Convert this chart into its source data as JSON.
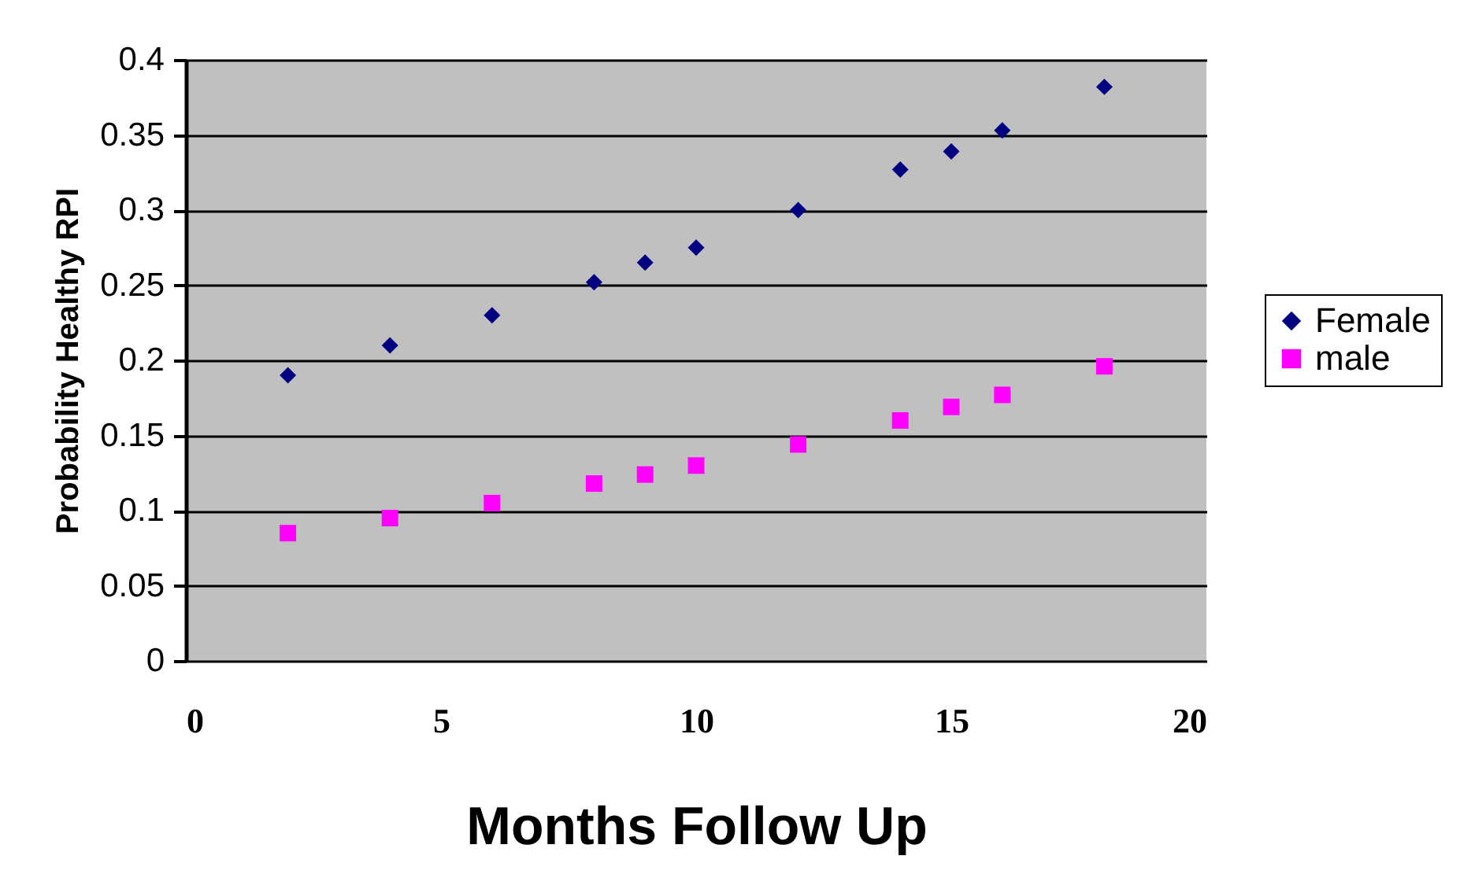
{
  "chart_data": {
    "type": "scatter",
    "xlabel": "Months Follow Up",
    "ylabel": "Probability Healthy RPI",
    "xlim": [
      0,
      20
    ],
    "xticks": [
      0,
      5,
      10,
      15,
      20
    ],
    "ylim": [
      0,
      0.4
    ],
    "yticks": [
      0,
      0.05,
      0.1,
      0.15,
      0.2,
      0.25,
      0.3,
      0.35,
      0.4
    ],
    "grid": "y",
    "legend": "right",
    "series": [
      {
        "name": "Female",
        "color": "#000080",
        "marker": "diamond",
        "x": [
          2,
          4,
          6,
          8,
          9,
          10,
          12,
          14,
          15,
          16,
          18
        ],
        "values": [
          0.19,
          0.21,
          0.23,
          0.252,
          0.265,
          0.275,
          0.3,
          0.327,
          0.339,
          0.353,
          0.382
        ]
      },
      {
        "name": "male",
        "color": "#ff00ff",
        "marker": "square",
        "x": [
          2,
          4,
          6,
          8,
          9,
          10,
          12,
          14,
          15,
          16,
          18
        ],
        "values": [
          0.085,
          0.095,
          0.105,
          0.118,
          0.124,
          0.13,
          0.144,
          0.16,
          0.169,
          0.177,
          0.196
        ]
      }
    ]
  }
}
